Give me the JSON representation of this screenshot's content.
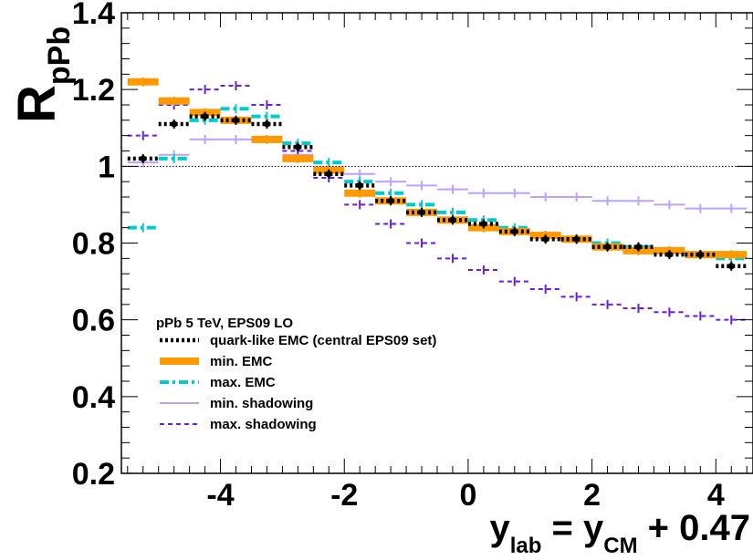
{
  "chart_data": {
    "type": "line",
    "style": "step-histogram with error bars",
    "xlabel": {
      "main": "y",
      "main_sub": "lab",
      "eq": " = ",
      "rhs": "y",
      "rhs_sub": "CM",
      "tail": " + 0.47"
    },
    "ylabel": {
      "main": "R",
      "sub": "pPb"
    },
    "xlim": [
      -5.6,
      4.6
    ],
    "ylim": [
      0.2,
      1.4
    ],
    "x_ticks": [
      -4,
      -2,
      0,
      2,
      4
    ],
    "x_tick_labels": [
      "-4",
      "-2",
      "0",
      "2",
      "4"
    ],
    "y_ticks": [
      0.2,
      0.4,
      0.6,
      0.8,
      1.0,
      1.2,
      1.4
    ],
    "y_tick_labels": [
      "0.2",
      "0.4",
      "0.6",
      "0.8",
      "1",
      "1.2",
      "1.4"
    ],
    "reference_line": 1.0,
    "grid": false,
    "legend_position": "bottom-left",
    "legend_title": "pPb 5 TeV, EPS09 LO",
    "series": [
      {
        "name": "quark-like EMC (central EPS09 set)",
        "color": "#000000",
        "line_style": "dotted",
        "x": [
          -5.25,
          -4.75,
          -4.25,
          -3.75,
          -3.25,
          -2.75,
          -2.25,
          -1.75,
          -1.25,
          -0.75,
          -0.25,
          0.25,
          0.75,
          1.25,
          1.75,
          2.25,
          2.75,
          3.25,
          3.75,
          4.25
        ],
        "y": [
          1.02,
          1.11,
          1.13,
          1.12,
          1.11,
          1.05,
          0.98,
          0.95,
          0.91,
          0.88,
          0.86,
          0.85,
          0.83,
          0.81,
          0.81,
          0.79,
          0.79,
          0.77,
          0.77,
          0.74
        ]
      },
      {
        "name": "min. EMC",
        "color": "#ff9900",
        "line_style": "solid-thick",
        "x": [
          -5.25,
          -4.75,
          -4.25,
          -3.75,
          -3.25,
          -2.75,
          -2.25,
          -1.75,
          -1.25,
          -0.75,
          -0.25,
          0.25,
          0.75,
          1.25,
          1.75,
          2.25,
          2.75,
          3.25,
          3.75,
          4.25
        ],
        "y": [
          1.22,
          1.17,
          1.14,
          1.12,
          1.07,
          1.02,
          0.99,
          0.93,
          0.91,
          0.88,
          0.86,
          0.84,
          0.83,
          0.82,
          0.81,
          0.79,
          0.78,
          0.78,
          0.77,
          0.77
        ]
      },
      {
        "name": "max. EMC",
        "color": "#00cccc",
        "line_style": "dash-dot",
        "x": [
          -5.25,
          -4.75,
          -4.25,
          -3.75,
          -3.25,
          -2.75,
          -2.25,
          -1.75,
          -1.25,
          -0.75,
          -0.25,
          0.25,
          0.75,
          1.25,
          1.75,
          2.25,
          2.75,
          3.25,
          3.75,
          4.25
        ],
        "y": [
          0.84,
          1.02,
          1.12,
          1.15,
          1.13,
          1.06,
          1.01,
          0.96,
          0.93,
          0.9,
          0.88,
          0.86,
          0.84,
          0.82,
          0.81,
          0.8,
          0.79,
          0.78,
          0.77,
          0.76
        ]
      },
      {
        "name": "min. shadowing",
        "color": "#c0a0ff",
        "line_style": "solid-thin",
        "x": [
          -5.25,
          -4.75,
          -4.25,
          -3.75,
          -3.25,
          -2.75,
          -2.25,
          -1.75,
          -1.25,
          -0.75,
          -0.25,
          0.25,
          0.75,
          1.25,
          1.75,
          2.25,
          2.75,
          3.25,
          3.75,
          4.25
        ],
        "y": [
          1.01,
          1.03,
          1.07,
          1.07,
          1.07,
          1.03,
          0.99,
          0.98,
          0.96,
          0.95,
          0.94,
          0.93,
          0.93,
          0.92,
          0.92,
          0.91,
          0.91,
          0.9,
          0.89,
          0.89
        ]
      },
      {
        "name": "max. shadowing",
        "color": "#6a1fd6",
        "line_style": "dashed",
        "x": [
          -5.25,
          -4.75,
          -4.25,
          -3.75,
          -3.25,
          -2.75,
          -2.25,
          -1.75,
          -1.25,
          -0.75,
          -0.25,
          0.25,
          0.75,
          1.25,
          1.75,
          2.25,
          2.75,
          3.25,
          3.75,
          4.25
        ],
        "y": [
          1.08,
          1.16,
          1.2,
          1.21,
          1.16,
          1.04,
          0.97,
          0.9,
          0.85,
          0.8,
          0.76,
          0.73,
          0.7,
          0.68,
          0.66,
          0.64,
          0.63,
          0.62,
          0.61,
          0.6
        ]
      }
    ]
  }
}
